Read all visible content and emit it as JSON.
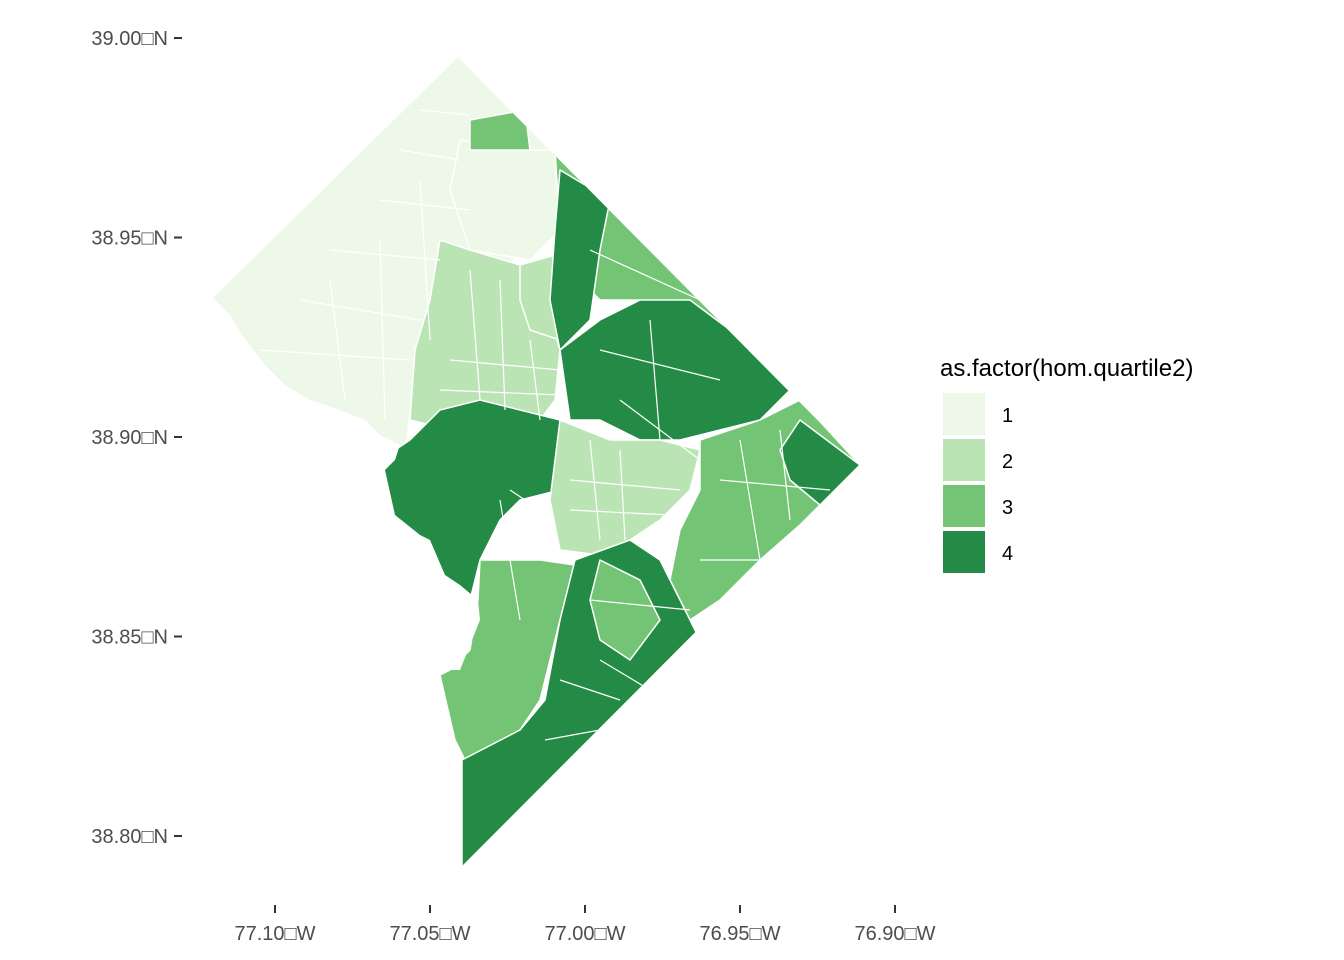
{
  "map": {
    "type": "choropleth",
    "region": "Washington, D.C. census tracts",
    "fill_variable": "as.factor(hom.quartile2)",
    "boundary_color": "#ffffff"
  },
  "axes": {
    "y_ticks": [
      {
        "value": 39.0,
        "label": "39.00□N"
      },
      {
        "value": 38.95,
        "label": "38.95□N"
      },
      {
        "value": 38.9,
        "label": "38.90□N"
      },
      {
        "value": 38.85,
        "label": "38.85□N"
      },
      {
        "value": 38.8,
        "label": "38.80□N"
      }
    ],
    "x_ticks": [
      {
        "value": -77.1,
        "label": "77.10□W"
      },
      {
        "value": -77.05,
        "label": "77.05□W"
      },
      {
        "value": -77.0,
        "label": "77.00□W"
      },
      {
        "value": -76.95,
        "label": "76.95□W"
      },
      {
        "value": -76.9,
        "label": "76.90□W"
      }
    ],
    "xlim": [
      -77.13,
      -76.89
    ],
    "ylim": [
      38.79,
      39.005
    ],
    "grid": false
  },
  "legend": {
    "title": "as.factor(hom.quartile2)",
    "placement": "right",
    "items": [
      {
        "label": "1",
        "color": "#edf8e9"
      },
      {
        "label": "2",
        "color": "#bae4b3"
      },
      {
        "label": "3",
        "color": "#74c476"
      },
      {
        "label": "4",
        "color": "#238b45"
      }
    ]
  }
}
